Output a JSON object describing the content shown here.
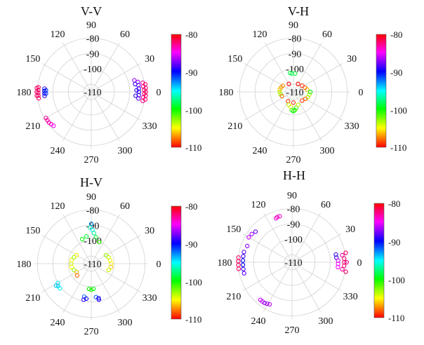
{
  "colorbar": {
    "ticks": [
      "-80",
      "-90",
      "-100",
      "-110"
    ],
    "min": -110,
    "max": -80
  },
  "chart_data": [
    {
      "type": "scatter",
      "polar": true,
      "title": "V-V",
      "angular_ticks": [
        "0",
        "30",
        "60",
        "90",
        "120",
        "150",
        "180",
        "210",
        "240",
        "270",
        "300",
        "330"
      ],
      "radial_ticks": [
        "-80",
        "-90",
        "-100",
        "-110"
      ],
      "rlim": [
        -115,
        -78
      ],
      "clim": [
        -110,
        -80
      ],
      "points": [
        {
          "theta": 10,
          "r": -81,
          "value": -83
        },
        {
          "theta": 6,
          "r": -81,
          "value": -83
        },
        {
          "theta": 2,
          "r": -80.5,
          "value": -82
        },
        {
          "theta": -2,
          "r": -80.5,
          "value": -82
        },
        {
          "theta": -6,
          "r": -81,
          "value": -83
        },
        {
          "theta": -10,
          "r": -81,
          "value": -83
        },
        {
          "theta": 8,
          "r": -79.5,
          "value": -82
        },
        {
          "theta": 4,
          "r": -79.5,
          "value": -82
        },
        {
          "theta": 0,
          "r": -79.5,
          "value": -82
        },
        {
          "theta": -4,
          "r": -79.5,
          "value": -82
        },
        {
          "theta": -8,
          "r": -79.5,
          "value": -82
        },
        {
          "theta": 12,
          "r": -84,
          "value": -87
        },
        {
          "theta": 8,
          "r": -84,
          "value": -88
        },
        {
          "theta": 4,
          "r": -84,
          "value": -89
        },
        {
          "theta": 0,
          "r": -84,
          "value": -89
        },
        {
          "theta": -4,
          "r": -84,
          "value": -89
        },
        {
          "theta": -8,
          "r": -84,
          "value": -88
        },
        {
          "theta": 15,
          "r": -86,
          "value": -87
        },
        {
          "theta": 10,
          "r": -86,
          "value": -89
        },
        {
          "theta": 2,
          "r": -85.5,
          "value": -89
        },
        {
          "theta": -5,
          "r": -86,
          "value": -89
        },
        {
          "theta": 175,
          "r": -80.5,
          "value": -82
        },
        {
          "theta": 178,
          "r": -80.5,
          "value": -82
        },
        {
          "theta": 181,
          "r": -80.5,
          "value": -82
        },
        {
          "theta": 184,
          "r": -80.5,
          "value": -82
        },
        {
          "theta": 187,
          "r": -80.5,
          "value": -82
        },
        {
          "theta": 176,
          "r": -79.5,
          "value": -82
        },
        {
          "theta": 180,
          "r": -79.5,
          "value": -82
        },
        {
          "theta": 184,
          "r": -79.5,
          "value": -82
        },
        {
          "theta": 176,
          "r": -84.5,
          "value": -89
        },
        {
          "theta": 179,
          "r": -84.5,
          "value": -90
        },
        {
          "theta": 182,
          "r": -84.5,
          "value": -90
        },
        {
          "theta": 185,
          "r": -84.5,
          "value": -89
        },
        {
          "theta": 178,
          "r": -85.5,
          "value": -91
        },
        {
          "theta": 182,
          "r": -85.5,
          "value": -91
        },
        {
          "theta": 210,
          "r": -81,
          "value": -83
        },
        {
          "theta": 213,
          "r": -81,
          "value": -83
        },
        {
          "theta": 216,
          "r": -81,
          "value": -84
        },
        {
          "theta": 219,
          "r": -81.5,
          "value": -84
        },
        {
          "theta": 222,
          "r": -82,
          "value": -85
        }
      ]
    },
    {
      "type": "scatter",
      "polar": true,
      "title": "V-H",
      "angular_ticks": [
        "0",
        "30",
        "60",
        "90",
        "120",
        "150",
        "180",
        "210",
        "240",
        "270",
        "300",
        "330"
      ],
      "radial_ticks": [
        "-80",
        "-90",
        "-100",
        "-110"
      ],
      "rlim": [
        -115,
        -78
      ],
      "clim": [
        -110,
        -80
      ],
      "points": [
        {
          "theta": 95,
          "r": -103,
          "value": -98
        },
        {
          "theta": 85,
          "r": -103,
          "value": -99
        },
        {
          "theta": 100,
          "r": -102.5,
          "value": -99
        },
        {
          "theta": 10,
          "r": -106,
          "value": -106
        },
        {
          "theta": 20,
          "r": -107,
          "value": -108
        },
        {
          "theta": 35,
          "r": -108,
          "value": -109
        },
        {
          "theta": 150,
          "r": -107,
          "value": -107
        },
        {
          "theta": 160,
          "r": -106.5,
          "value": -107
        },
        {
          "theta": 170,
          "r": -106,
          "value": -106
        },
        {
          "theta": 180,
          "r": -106,
          "value": -104
        },
        {
          "theta": 190,
          "r": -106.5,
          "value": -103
        },
        {
          "theta": 200,
          "r": -107,
          "value": -108
        },
        {
          "theta": 0,
          "r": -104,
          "value": -100
        },
        {
          "theta": 350,
          "r": -104.5,
          "value": -103
        },
        {
          "theta": 340,
          "r": -105,
          "value": -104
        },
        {
          "theta": 330,
          "r": -106,
          "value": -108
        },
        {
          "theta": 315,
          "r": -107,
          "value": -109
        },
        {
          "theta": 60,
          "r": -109,
          "value": -110
        },
        {
          "theta": 120,
          "r": -109,
          "value": -110
        },
        {
          "theta": 240,
          "r": -108,
          "value": -109
        },
        {
          "theta": 270,
          "r": -108,
          "value": -109
        },
        {
          "theta": 260,
          "r": -105,
          "value": -105
        },
        {
          "theta": 265,
          "r": -103,
          "value": -101
        },
        {
          "theta": 270,
          "r": -102.5,
          "value": -100
        },
        {
          "theta": 275,
          "r": -103,
          "value": -101
        },
        {
          "theta": 280,
          "r": -104.5,
          "value": -101
        },
        {
          "theta": 250,
          "r": -106,
          "value": -104
        },
        {
          "theta": 290,
          "r": -106,
          "value": -104
        }
      ]
    },
    {
      "type": "scatter",
      "polar": true,
      "title": "H-V",
      "angular_ticks": [
        "0",
        "30",
        "60",
        "90",
        "120",
        "150",
        "180",
        "210",
        "240",
        "270",
        "300",
        "330"
      ],
      "radial_ticks": [
        "-80",
        "-90",
        "-100",
        "-110"
      ],
      "rlim": [
        -115,
        -78
      ],
      "clim": [
        -110,
        -80
      ],
      "points": [
        {
          "theta": 90,
          "r": -89,
          "value": -93
        },
        {
          "theta": 92,
          "r": -91.5,
          "value": -96
        },
        {
          "theta": 88,
          "r": -93,
          "value": -95
        },
        {
          "theta": 100,
          "r": -97,
          "value": -99
        },
        {
          "theta": 85,
          "r": -95,
          "value": -97
        },
        {
          "theta": 110,
          "r": -98,
          "value": -100
        },
        {
          "theta": 80,
          "r": -97.5,
          "value": -99
        },
        {
          "theta": 70,
          "r": -100,
          "value": -101
        },
        {
          "theta": 0,
          "r": -102,
          "value": -105
        },
        {
          "theta": 10,
          "r": -102.5,
          "value": -105
        },
        {
          "theta": 20,
          "r": -103,
          "value": -104
        },
        {
          "theta": 350,
          "r": -102,
          "value": -106
        },
        {
          "theta": 340,
          "r": -103,
          "value": -104
        },
        {
          "theta": 30,
          "r": -104,
          "value": -103
        },
        {
          "theta": 180,
          "r": -102,
          "value": -104
        },
        {
          "theta": 170,
          "r": -102,
          "value": -105
        },
        {
          "theta": 190,
          "r": -102,
          "value": -105
        },
        {
          "theta": 160,
          "r": -103,
          "value": -103
        },
        {
          "theta": 200,
          "r": -103,
          "value": -103
        },
        {
          "theta": 150,
          "r": -104,
          "value": -105
        },
        {
          "theta": 210,
          "r": -104,
          "value": -106
        },
        {
          "theta": 220,
          "r": -103,
          "value": -108
        },
        {
          "theta": 210,
          "r": -90,
          "value": -95
        },
        {
          "theta": 214,
          "r": -89,
          "value": -94
        },
        {
          "theta": 218,
          "r": -89,
          "value": -95
        },
        {
          "theta": 212,
          "r": -88,
          "value": -94
        },
        {
          "theta": 270,
          "r": -98,
          "value": -101
        },
        {
          "theta": 265,
          "r": -98.5,
          "value": -100
        },
        {
          "theta": 275,
          "r": -98.5,
          "value": -100
        },
        {
          "theta": 258,
          "r": -93,
          "value": -92
        },
        {
          "theta": 262,
          "r": -92,
          "value": -90
        },
        {
          "theta": 278,
          "r": -93,
          "value": -92
        },
        {
          "theta": 282,
          "r": -92,
          "value": -90
        },
        {
          "theta": 258,
          "r": -91,
          "value": -89
        },
        {
          "theta": 282,
          "r": -91,
          "value": -89
        }
      ]
    },
    {
      "type": "scatter",
      "polar": true,
      "title": "H-H",
      "angular_ticks": [
        "0",
        "30",
        "60",
        "90",
        "120",
        "150",
        "180",
        "210",
        "240",
        "270",
        "300",
        "330"
      ],
      "radial_ticks": [
        "-80",
        "-90",
        "-100",
        "-110"
      ],
      "rlim": [
        -115,
        -78
      ],
      "clim": [
        -110,
        -80
      ],
      "points": [
        {
          "theta": 10,
          "r": -86,
          "value": -89
        },
        {
          "theta": 6,
          "r": -86,
          "value": -89
        },
        {
          "theta": 2,
          "r": -85,
          "value": -86
        },
        {
          "theta": -2,
          "r": -85,
          "value": -85
        },
        {
          "theta": -6,
          "r": -85,
          "value": -85
        },
        {
          "theta": 8,
          "r": -82,
          "value": -83
        },
        {
          "theta": 4,
          "r": -81,
          "value": -82
        },
        {
          "theta": 0,
          "r": -81,
          "value": -82
        },
        {
          "theta": -4,
          "r": -81,
          "value": -82
        },
        {
          "theta": -8,
          "r": -82,
          "value": -83
        },
        {
          "theta": 10,
          "r": -79.5,
          "value": -82
        },
        {
          "theta": -10,
          "r": -79.5,
          "value": -82
        },
        {
          "theta": 0,
          "r": -79.5,
          "value": -83
        },
        {
          "theta": 175,
          "r": -80,
          "value": -82
        },
        {
          "theta": 179,
          "r": -80,
          "value": -82
        },
        {
          "theta": 183,
          "r": -80,
          "value": -82
        },
        {
          "theta": 187,
          "r": -80,
          "value": -82
        },
        {
          "theta": 168,
          "r": -83,
          "value": -88
        },
        {
          "theta": 173,
          "r": -83,
          "value": -89
        },
        {
          "theta": 178,
          "r": -83,
          "value": -90
        },
        {
          "theta": 183,
          "r": -83,
          "value": -90
        },
        {
          "theta": 188,
          "r": -83,
          "value": -89
        },
        {
          "theta": 193,
          "r": -83,
          "value": -88
        },
        {
          "theta": 160,
          "r": -84,
          "value": -87
        },
        {
          "theta": 150,
          "r": -82.5,
          "value": -86
        },
        {
          "theta": 145,
          "r": -83,
          "value": -87
        },
        {
          "theta": 140,
          "r": -84,
          "value": -88
        },
        {
          "theta": 105,
          "r": -84,
          "value": -84
        },
        {
          "theta": 108,
          "r": -84,
          "value": -84
        },
        {
          "theta": 110,
          "r": -84.5,
          "value": -84
        },
        {
          "theta": 230,
          "r": -83,
          "value": -86
        },
        {
          "theta": 233,
          "r": -83,
          "value": -86
        },
        {
          "theta": 236,
          "r": -83,
          "value": -87
        },
        {
          "theta": 239,
          "r": -83.5,
          "value": -87
        },
        {
          "theta": 242,
          "r": -84,
          "value": -86
        }
      ]
    }
  ]
}
